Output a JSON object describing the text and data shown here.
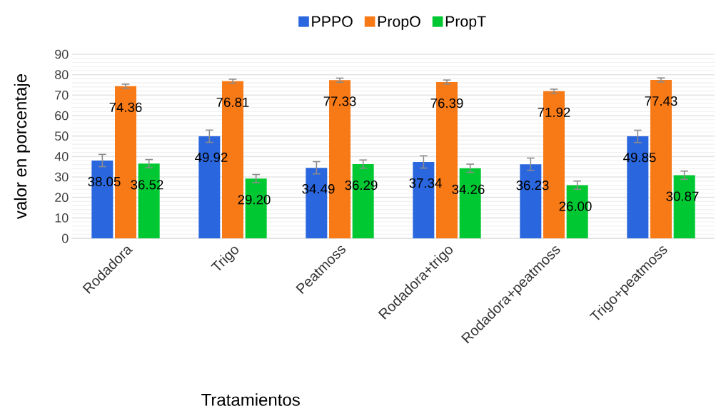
{
  "chart_data": {
    "type": "bar",
    "xlabel": "Tratamientos",
    "ylabel": "valor en porcentaje",
    "categories": [
      "Rodadora",
      "Trigo",
      "Peatmoss",
      "Rodadora+trigo",
      "Rodadora+peatmoss",
      "Trigo+peatmoss"
    ],
    "series": [
      {
        "name": "PPPO",
        "color": "#2a66dd",
        "values": [
          38.05,
          49.92,
          34.49,
          37.34,
          36.23,
          49.85
        ],
        "errors": [
          3,
          3,
          3,
          3,
          3,
          3
        ],
        "value_labels": [
          "38.05",
          "49.92",
          "34.49",
          "37.34",
          "36.23",
          "49.85"
        ]
      },
      {
        "name": "PropO",
        "color": "#f77a17",
        "values": [
          74.36,
          76.81,
          77.33,
          76.39,
          71.92,
          77.43
        ],
        "errors": [
          1,
          1,
          1,
          1,
          1,
          1
        ],
        "value_labels": [
          "74.36",
          "76.81",
          "77.33",
          "76.39",
          "71.92",
          "77.43"
        ]
      },
      {
        "name": "PropT",
        "color": "#00c832",
        "values": [
          36.52,
          29.2,
          36.29,
          34.26,
          26.0,
          30.87
        ],
        "errors": [
          2,
          2,
          2,
          2,
          2,
          2
        ],
        "value_labels": [
          "36.52",
          "29.20",
          "36.29",
          "34.26",
          "26.00",
          "30.87"
        ]
      }
    ],
    "ylim": [
      0,
      90
    ],
    "yticks": [
      0,
      10,
      20,
      30,
      40,
      50,
      60,
      70,
      80,
      90
    ],
    "grid": "y",
    "legend": "top"
  }
}
